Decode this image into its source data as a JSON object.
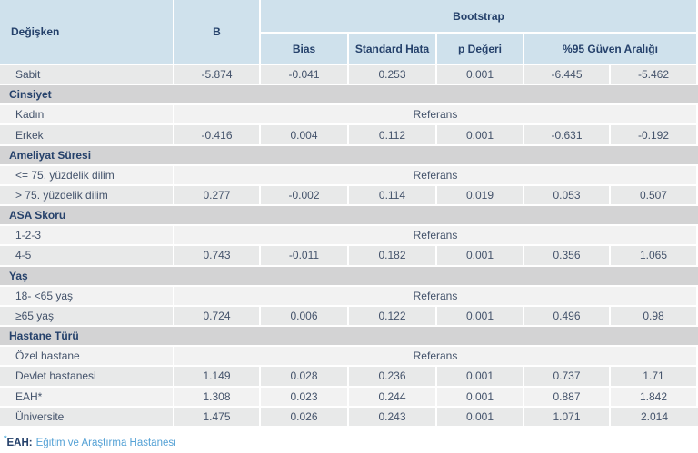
{
  "chart_data": {
    "type": "table",
    "header": {
      "variable": "Değişken",
      "b": "B",
      "bootstrap": "Bootstrap",
      "bias": "Bias",
      "std_error": "Standard Hata",
      "p_value": "p Değeri",
      "ci95": "%95 Güven Aralığı"
    },
    "reference_label": "Referans",
    "rows": [
      {
        "type": "data",
        "label": "Sabit",
        "b": "-5.874",
        "bias": "-0.041",
        "std": "0.253",
        "p": "0.001",
        "ci_low": "-6.445",
        "ci_high": "-5.462"
      },
      {
        "type": "section",
        "label": "Cinsiyet"
      },
      {
        "type": "reference",
        "label": "Kadın",
        "value": "Referans"
      },
      {
        "type": "data",
        "label": "Erkek",
        "b": "-0.416",
        "bias": "0.004",
        "std": "0.112",
        "p": "0.001",
        "ci_low": "-0.631",
        "ci_high": "-0.192"
      },
      {
        "type": "section",
        "label": "Ameliyat Süresi"
      },
      {
        "type": "reference",
        "label": "<= 75. yüzdelik dilim",
        "value": "Referans"
      },
      {
        "type": "data",
        "label": "> 75. yüzdelik dilim",
        "b": "0.277",
        "bias": "-0.002",
        "std": "0.114",
        "p": "0.019",
        "ci_low": "0.053",
        "ci_high": "0.507"
      },
      {
        "type": "section",
        "label": "ASA Skoru"
      },
      {
        "type": "reference",
        "label": "1-2-3",
        "value": "Referans"
      },
      {
        "type": "data",
        "label": "4-5",
        "b": "0.743",
        "bias": "-0.011",
        "std": "0.182",
        "p": "0.001",
        "ci_low": "0.356",
        "ci_high": "1.065"
      },
      {
        "type": "section",
        "label": "Yaş"
      },
      {
        "type": "reference",
        "label": "18- <65 yaş",
        "value": "Referans"
      },
      {
        "type": "data",
        "label": "≥65 yaş",
        "b": "0.724",
        "bias": "0.006",
        "std": "0.122",
        "p": "0.001",
        "ci_low": "0.496",
        "ci_high": "0.98"
      },
      {
        "type": "section",
        "label": "Hastane Türü"
      },
      {
        "type": "reference",
        "label": "Özel hastane",
        "value": "Referans"
      },
      {
        "type": "data",
        "label": "Devlet hastanesi",
        "b": "1.149",
        "bias": "0.028",
        "std": "0.236",
        "p": "0.001",
        "ci_low": "0.737",
        "ci_high": "1.71"
      },
      {
        "type": "data",
        "label": "EAH*",
        "b": "1.308",
        "bias": "0.023",
        "std": "0.244",
        "p": "0.001",
        "ci_low": "0.887",
        "ci_high": "1.842"
      },
      {
        "type": "data",
        "label": "Üniversite",
        "b": "1.475",
        "bias": "0.026",
        "std": "0.243",
        "p": "0.001",
        "ci_low": "1.071",
        "ci_high": "2.014"
      }
    ]
  },
  "footnote": {
    "asterisk": "*",
    "term": "EAH:",
    "definition": "Eğitim ve Araştırma Hastanesi"
  },
  "colors": {
    "header_bg": "#cfe1ec",
    "section_bg": "#d3d3d4",
    "row_dark": "#e8e9e9",
    "row_light": "#f2f2f2",
    "text_navy": "#25416b",
    "text_body": "#44536b",
    "footnote_blue": "#54a1d5"
  }
}
